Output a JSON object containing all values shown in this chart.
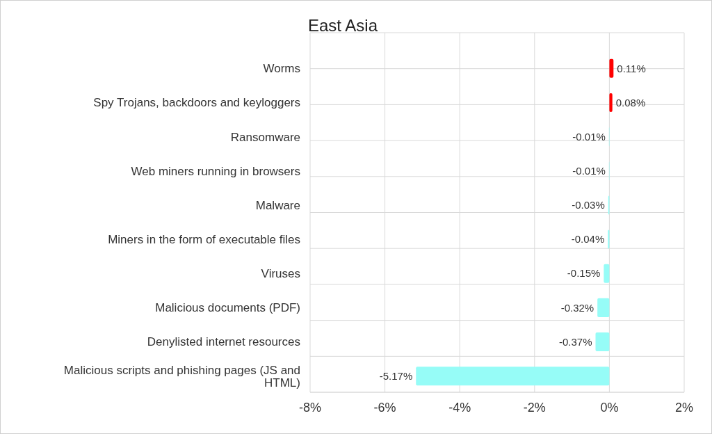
{
  "chart_data": {
    "type": "bar",
    "orientation": "horizontal",
    "title": "East Asia",
    "categories": [
      "Worms",
      "Spy Trojans, backdoors and keyloggers",
      "Ransomware",
      "Web miners running in browsers",
      "Malware",
      "Miners in the form of executable files",
      "Viruses",
      "Malicious documents (PDF)",
      "Denylisted internet resources",
      "Malicious scripts and phishing pages (JS and HTML)"
    ],
    "values": [
      0.11,
      0.08,
      -0.01,
      -0.01,
      -0.03,
      -0.04,
      -0.15,
      -0.32,
      -0.37,
      -5.17
    ],
    "colors": [
      "#ff0000",
      "#ff0000",
      "#96fcf7",
      "#96fcf7",
      "#96fcf7",
      "#96fcf7",
      "#96fcf7",
      "#96fcf7",
      "#96fcf7",
      "#96fcf7"
    ],
    "xlim": [
      -8,
      2
    ],
    "xticks": [
      {
        "value": -8,
        "label": "-8%"
      },
      {
        "value": -6,
        "label": "-6%"
      },
      {
        "value": -4,
        "label": "-4%"
      },
      {
        "value": -2,
        "label": "-2%"
      },
      {
        "value": 0,
        "label": "0%"
      },
      {
        "value": 2,
        "label": "2%"
      }
    ],
    "value_labels": [
      "0.11%",
      "0.08%",
      "-0.01%",
      "-0.01%",
      "-0.03%",
      "-0.04%",
      "-0.15%",
      "-0.32%",
      "-0.37%",
      "-5.17%"
    ],
    "grid": true
  }
}
